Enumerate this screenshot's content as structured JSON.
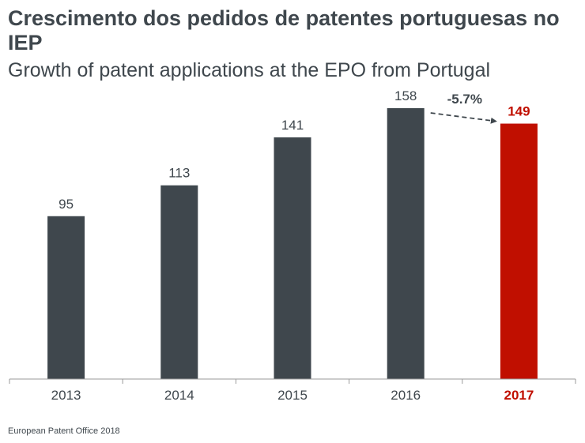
{
  "title": "Crescimento dos pedidos de patentes portuguesas no IEP",
  "subtitle": "Growth of patent applications at the EPO from Portugal",
  "source": "European Patent Office 2018",
  "colors": {
    "bar": "#3f474d",
    "highlight": "#c00f00",
    "text": "#3f474d",
    "axis": "#9a9a9a"
  },
  "chart_data": {
    "type": "bar",
    "categories": [
      "2013",
      "2014",
      "2015",
      "2016",
      "2017"
    ],
    "values": [
      95,
      113,
      141,
      158,
      149
    ],
    "highlight_index": 4,
    "ylim": [
      0,
      158
    ],
    "grid": false,
    "annotation": {
      "text": "-5.7%",
      "from": "2016",
      "to": "2017"
    }
  }
}
